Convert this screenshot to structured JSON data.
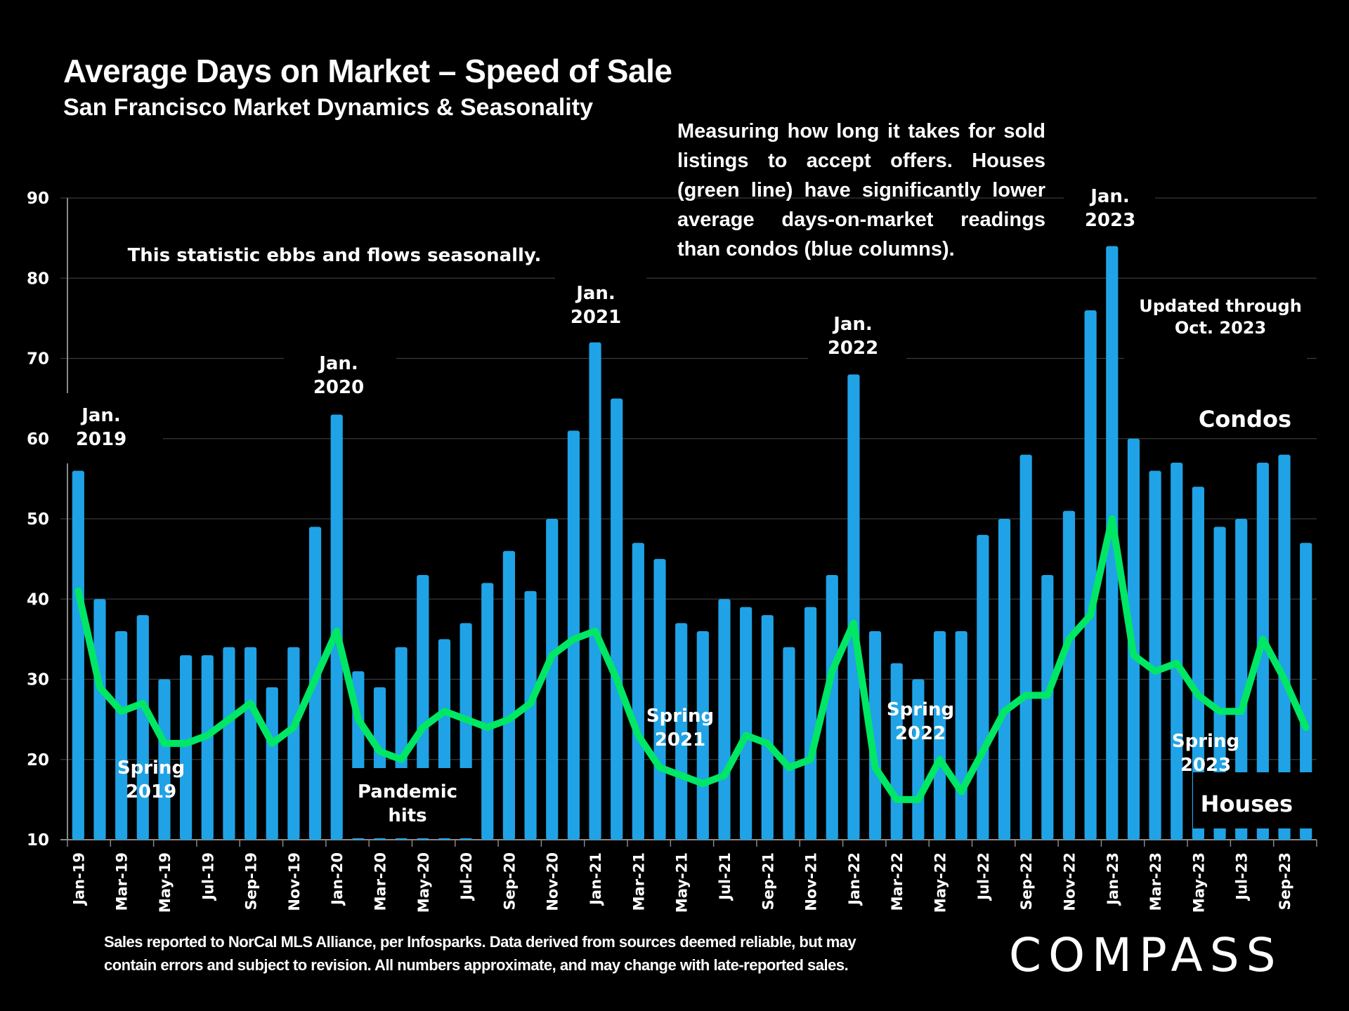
{
  "title": "Average Days on Market – Speed of Sale",
  "subtitle": "San Francisco Market Dynamics & Seasonality",
  "description": "Measuring how long it takes for sold listings to accept offers. Houses (green line) have significantly lower average days-on-market readings than condos (blue columns).",
  "footer_line1": "Sales reported to NorCal MLS Alliance, per Infosparks. Data derived from sources deemed reliable, but may",
  "footer_line2": "contain errors and subject to revision. All numbers approximate, and may change with late-reported sales.",
  "logo": "COMPASS",
  "colors": {
    "condos": "#1fa3e6",
    "houses": "#00e765",
    "background": "#000000",
    "grid": "#3a3a3a"
  },
  "chart_data": {
    "type": "bar+line",
    "title": "Average Days on Market – Speed of Sale",
    "xlabel": "",
    "ylabel": "",
    "ylim": [
      10,
      90
    ],
    "yticks": [
      10,
      20,
      30,
      40,
      50,
      60,
      70,
      80,
      90
    ],
    "grid": true,
    "categories": [
      "Jan-19",
      "Feb-19",
      "Mar-19",
      "Apr-19",
      "May-19",
      "Jun-19",
      "Jul-19",
      "Aug-19",
      "Sep-19",
      "Oct-19",
      "Nov-19",
      "Dec-19",
      "Jan-20",
      "Feb-20",
      "Mar-20",
      "Apr-20",
      "May-20",
      "Jun-20",
      "Jul-20",
      "Aug-20",
      "Sep-20",
      "Oct-20",
      "Nov-20",
      "Dec-20",
      "Jan-21",
      "Feb-21",
      "Mar-21",
      "Apr-21",
      "May-21",
      "Jun-21",
      "Jul-21",
      "Aug-21",
      "Sep-21",
      "Oct-21",
      "Nov-21",
      "Dec-21",
      "Jan-22",
      "Feb-22",
      "Mar-22",
      "Apr-22",
      "May-22",
      "Jun-22",
      "Jul-22",
      "Aug-22",
      "Sep-22",
      "Oct-22",
      "Nov-22",
      "Dec-22",
      "Jan-23",
      "Feb-23",
      "Mar-23",
      "Apr-23",
      "May-23",
      "Jun-23",
      "Jul-23",
      "Aug-23",
      "Sep-23",
      "Oct-23"
    ],
    "tick_labels_shown": [
      "Jan-19",
      "Mar-19",
      "May-19",
      "Jul-19",
      "Sep-19",
      "Nov-19",
      "Jan-20",
      "Mar-20",
      "May-20",
      "Jul-20",
      "Sep-20",
      "Nov-20",
      "Jan-21",
      "Mar-21",
      "May-21",
      "Jul-21",
      "Sep-21",
      "Nov-21",
      "Jan-22",
      "Mar-22",
      "May-22",
      "Jul-22",
      "Sep-22",
      "Nov-22",
      "Jan-23",
      "Mar-23",
      "May-23",
      "Jul-23",
      "Sep-23"
    ],
    "series": [
      {
        "name": "Condos",
        "type": "bar",
        "values": [
          56,
          40,
          36,
          38,
          30,
          33,
          33,
          34,
          34,
          29,
          34,
          49,
          63,
          31,
          29,
          34,
          43,
          35,
          37,
          42,
          46,
          41,
          50,
          61,
          72,
          65,
          47,
          45,
          37,
          36,
          40,
          39,
          38,
          34,
          39,
          43,
          68,
          36,
          32,
          30,
          36,
          36,
          48,
          50,
          58,
          43,
          51,
          76,
          84,
          60,
          56,
          57,
          54,
          49,
          50,
          57,
          58,
          47
        ]
      },
      {
        "name": "Houses",
        "type": "line",
        "values": [
          41,
          29,
          26,
          27,
          22,
          22,
          23,
          25,
          27,
          22,
          24,
          30,
          36,
          25,
          21,
          20,
          24,
          26,
          25,
          24,
          25,
          27,
          33,
          35,
          36,
          30,
          23,
          19,
          18,
          17,
          18,
          23,
          22,
          19,
          20,
          31,
          37,
          19,
          15,
          15,
          20,
          16,
          21,
          26,
          28,
          28,
          35,
          38,
          50,
          33,
          31,
          32,
          28,
          26,
          26,
          35,
          30,
          24
        ]
      }
    ],
    "legend": [
      {
        "label": "Condos",
        "placement": "right"
      },
      {
        "label": "Houses",
        "placement": "bottom-right"
      }
    ],
    "annotations": [
      {
        "text": "This statistic ebbs and flows seasonally.",
        "at": "top-left"
      },
      {
        "text": "Jan.\n2019",
        "category": "Jan-19"
      },
      {
        "text": "Jan.\n2020",
        "category": "Jan-20"
      },
      {
        "text": "Jan.\n2021",
        "category": "Jan-21"
      },
      {
        "text": "Jan.\n2022",
        "category": "Jan-22"
      },
      {
        "text": "Jan.\n2023",
        "category": "Jan-23"
      },
      {
        "text": "Spring\n2019",
        "category": "Apr-19"
      },
      {
        "text": "Pandemic\nhits",
        "category": "Apr-20"
      },
      {
        "text": "Spring\n2021",
        "category": "May-21"
      },
      {
        "text": "Spring\n2022",
        "category": "Apr-22"
      },
      {
        "text": "Spring\n2023",
        "category": "Jun-23"
      },
      {
        "text": "Updated through\nOct. 2023",
        "at": "top-right"
      }
    ]
  }
}
